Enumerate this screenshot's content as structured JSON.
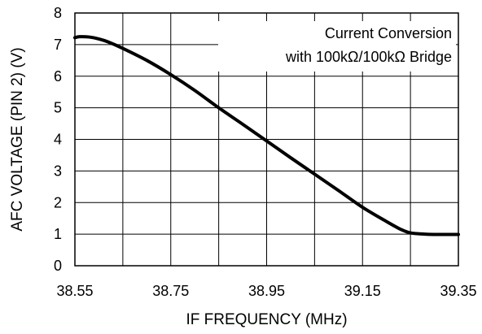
{
  "chart_data": {
    "type": "line",
    "title": "",
    "xlabel": "IF FREQUENCY (MHz)",
    "ylabel": "AFC VOLTAGE (PIN 2) (V)",
    "xlim": [
      38.55,
      39.35
    ],
    "ylim": [
      0,
      8
    ],
    "x_ticks": [
      38.55,
      38.65,
      38.75,
      38.85,
      38.95,
      39.05,
      39.15,
      39.25,
      39.35
    ],
    "x_tick_labels": [
      "38.55",
      "",
      "38.75",
      "",
      "38.95",
      "",
      "39.15",
      "",
      "39.35"
    ],
    "y_ticks": [
      0,
      1,
      2,
      3,
      4,
      5,
      6,
      7,
      8
    ],
    "y_tick_labels": [
      "0",
      "1",
      "2",
      "3",
      "4",
      "5",
      "6",
      "7",
      "8"
    ],
    "grid": true,
    "annotation": {
      "lines": [
        "Current Conversion",
        "with 100kΩ/100kΩ Bridge"
      ],
      "placement": "top-right"
    },
    "series": [
      {
        "x": [
          38.55,
          38.56,
          38.58,
          38.6,
          38.62,
          38.65,
          38.7,
          38.75,
          38.8,
          38.85,
          38.9,
          38.95,
          39.0,
          39.05,
          39.1,
          39.15,
          39.2,
          39.23,
          39.25,
          39.28,
          39.3,
          39.33,
          39.35
        ],
        "y": [
          7.22,
          7.25,
          7.24,
          7.18,
          7.08,
          6.88,
          6.5,
          6.05,
          5.55,
          5.0,
          4.48,
          3.95,
          3.42,
          2.9,
          2.38,
          1.85,
          1.4,
          1.15,
          1.04,
          1.0,
          0.99,
          0.99,
          0.99
        ],
        "color": "#000000"
      }
    ]
  }
}
